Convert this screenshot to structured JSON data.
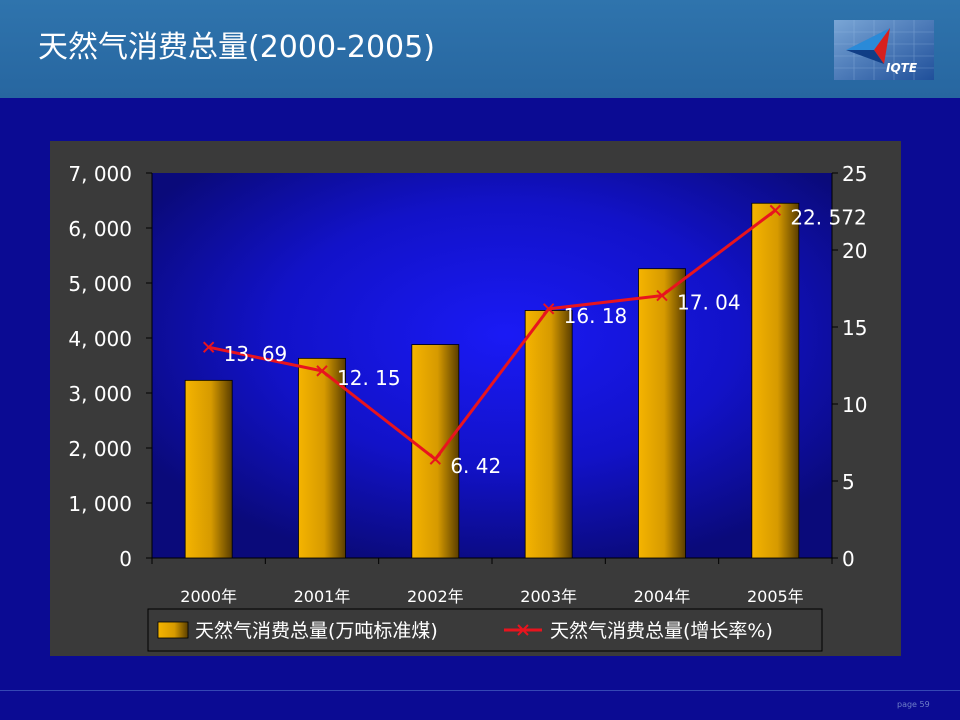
{
  "slide": {
    "title": "天然气消费总量(2000-2005)",
    "logo_text": "IQTE",
    "page_label": "page 59"
  },
  "colors": {
    "bar": "#e0a000",
    "line": "#e8141e",
    "plot_bg": "#1818e6",
    "panel_bg": "#3a3a3a"
  },
  "chart_data": {
    "type": "bar",
    "categories": [
      "2000年",
      "2001年",
      "2002年",
      "2003年",
      "2004年",
      "2005年"
    ],
    "series": [
      {
        "name": "天然气消费总量(万吨标准煤)",
        "type": "bar",
        "axis": "left",
        "values": [
          3230,
          3630,
          3880,
          4500,
          5260,
          6450
        ]
      },
      {
        "name": "天然气消费总量(增长率%)",
        "type": "line",
        "axis": "right",
        "values": [
          13.69,
          12.15,
          6.42,
          16.18,
          17.04,
          22.572
        ],
        "labels": [
          "13. 69",
          "12. 15",
          "6. 42",
          "16. 18",
          "17. 04",
          "22. 572"
        ]
      }
    ],
    "y_left": {
      "lim": [
        0,
        7000
      ],
      "ticks": [
        0,
        1000,
        2000,
        3000,
        4000,
        5000,
        6000,
        7000
      ],
      "tick_labels": [
        "0",
        "1, 000",
        "2, 000",
        "3, 000",
        "4, 000",
        "5, 000",
        "6, 000",
        "7, 000"
      ]
    },
    "y_right": {
      "lim": [
        0,
        25
      ],
      "ticks": [
        0,
        5,
        10,
        15,
        20,
        25
      ],
      "tick_labels": [
        "0",
        "5",
        "10",
        "15",
        "20",
        "25"
      ]
    },
    "grid": false,
    "legend_position": "bottom"
  }
}
